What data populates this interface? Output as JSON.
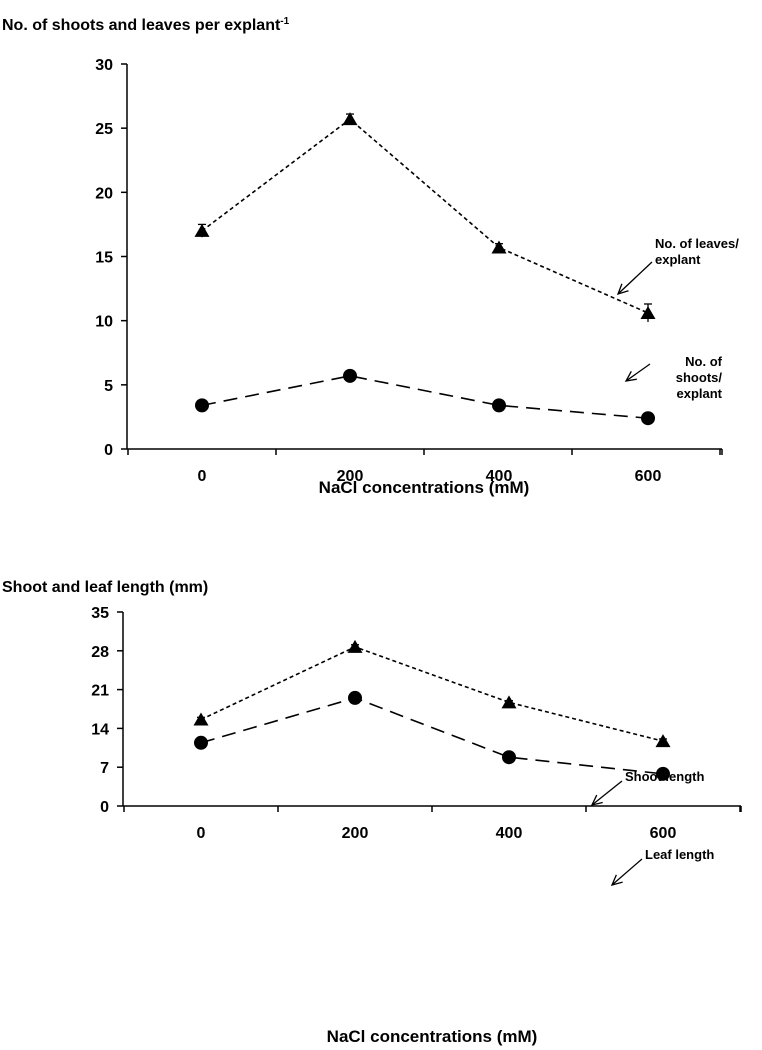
{
  "chart_data": [
    {
      "type": "line",
      "title": "No. of shoots and leaves per explant",
      "title_superscript": "-1",
      "xlabel": "NaCl concentrations (mM)",
      "ylabel": "",
      "x": [
        0,
        200,
        400,
        600
      ],
      "ylim": [
        0,
        30
      ],
      "yticks": [
        0,
        5,
        10,
        15,
        20,
        25,
        30
      ],
      "grid": false,
      "series": [
        {
          "marker": "triangle",
          "line_style": "dotted",
          "values": [
            17.0,
            25.7,
            15.7,
            10.6
          ],
          "errors": [
            0.5,
            0.4,
            0.3,
            0.7
          ]
        },
        {
          "marker": "circle",
          "line_style": "dashed",
          "values": [
            3.4,
            5.7,
            3.4,
            2.4
          ],
          "errors": [
            0.2,
            0.2,
            0.2,
            0.2
          ]
        }
      ],
      "annotations": [
        {
          "lines": [
            "No. of leaves/",
            "explant"
          ],
          "target_series": 0,
          "target_x": 540,
          "target_y": 12.2
        },
        {
          "lines": [
            "No. of",
            "shoots/",
            "explant"
          ],
          "target_series": 1,
          "target_x": 570,
          "target_y": 3.0
        }
      ]
    },
    {
      "type": "line",
      "title": "Shoot and leaf length (mm)",
      "xlabel": "NaCl concentrations (mM)",
      "ylabel": "",
      "x": [
        0,
        200,
        400,
        600
      ],
      "ylim": [
        0,
        35
      ],
      "yticks": [
        0,
        7,
        14,
        21,
        28,
        35
      ],
      "grid": false,
      "series": [
        {
          "marker": "triangle",
          "line_style": "dotted",
          "values": [
            15.6,
            28.7,
            18.7,
            11.7
          ],
          "errors": [
            0.4,
            0.4,
            0.3,
            0.4
          ]
        },
        {
          "marker": "circle",
          "line_style": "dashed",
          "values": [
            11.4,
            19.5,
            8.8,
            5.8
          ],
          "errors": [
            0.3,
            0.3,
            0.3,
            0.8
          ]
        }
      ],
      "annotations": [
        {
          "lines": [
            "Shoot length"
          ],
          "target_series": 0,
          "target_x": 520,
          "target_y": 15.2
        },
        {
          "lines": [
            "Leaf length"
          ],
          "target_series": 1,
          "target_x": 545,
          "target_y": 5.8
        }
      ]
    }
  ]
}
